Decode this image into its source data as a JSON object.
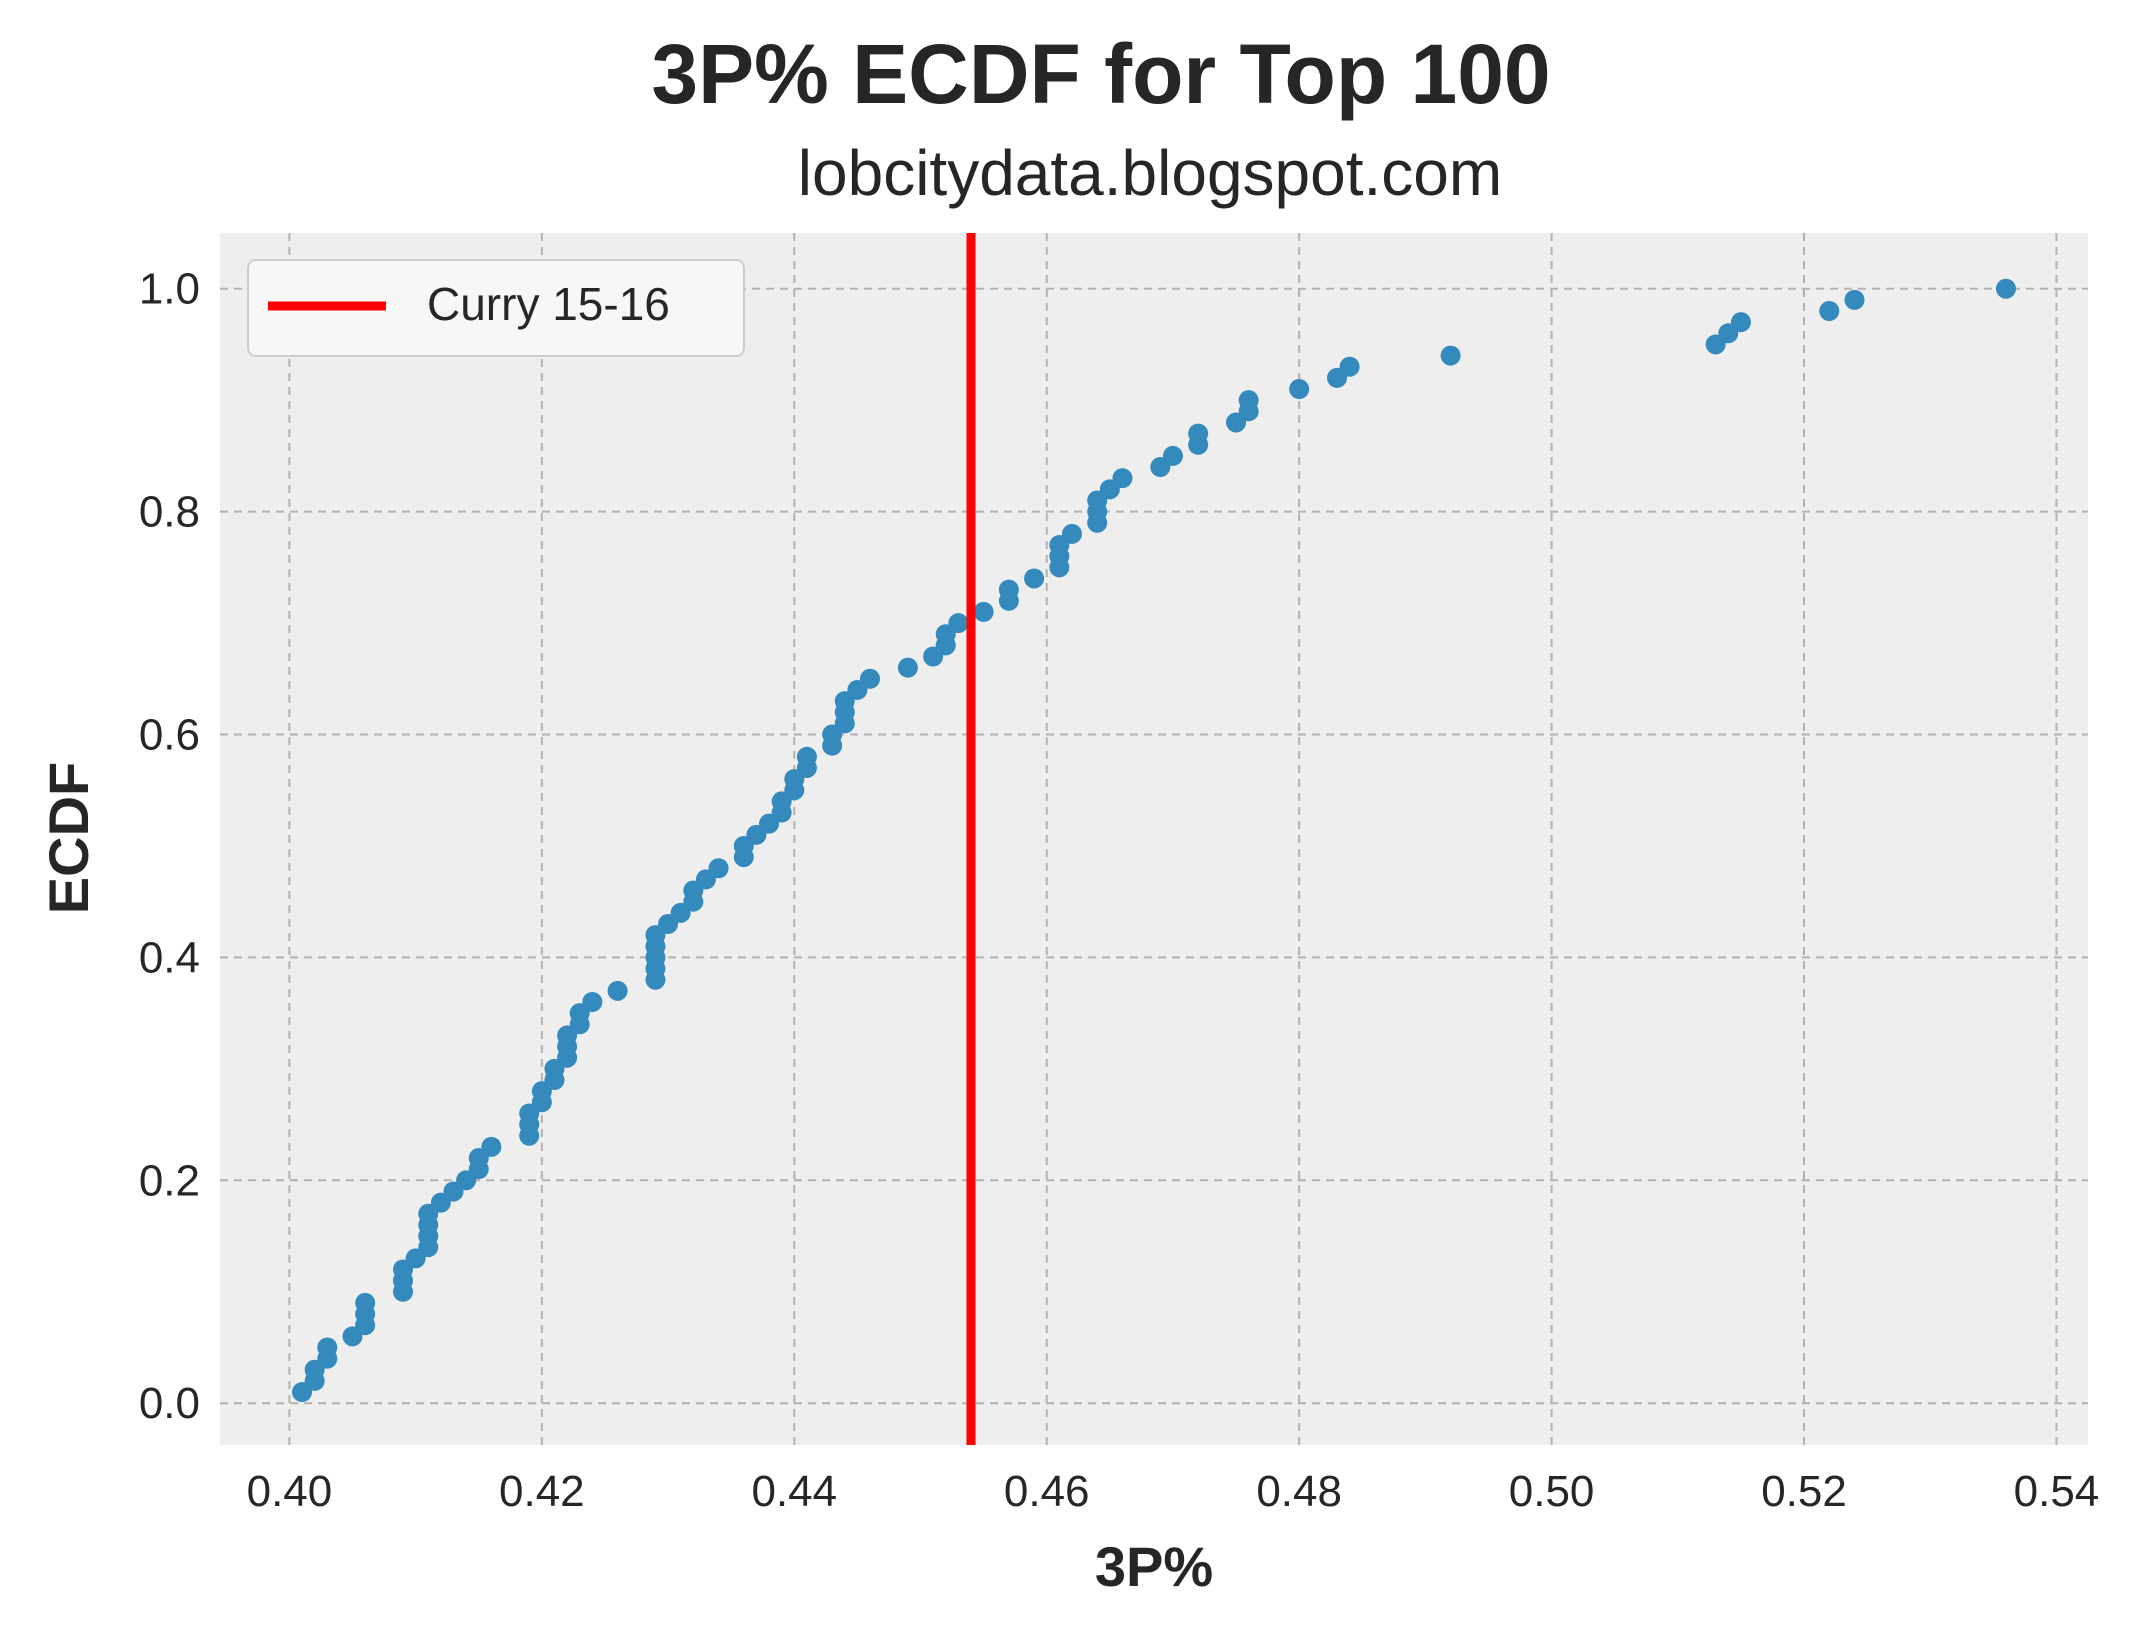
{
  "chart_data": {
    "type": "scatter",
    "title": "3P% ECDF for Top 100",
    "subtitle": "lobcitydata.blogspot.com",
    "xlabel": "3P%",
    "ylabel": "ECDF",
    "xlim": [
      0.3945,
      0.5425
    ],
    "ylim": [
      -0.0375,
      1.05
    ],
    "x_ticks": [
      0.4,
      0.42,
      0.44,
      0.46,
      0.48,
      0.5,
      0.52,
      0.54
    ],
    "x_tick_labels": [
      "0.40",
      "0.42",
      "0.44",
      "0.46",
      "0.48",
      "0.50",
      "0.52",
      "0.54"
    ],
    "y_ticks": [
      0.0,
      0.2,
      0.4,
      0.6,
      0.8,
      1.0
    ],
    "y_tick_labels": [
      "0.0",
      "0.2",
      "0.4",
      "0.6",
      "0.8",
      "1.0"
    ],
    "grid": true,
    "legend_position": "top-left",
    "background_color": "#eeeeee",
    "grid_color": "#b2b2b2",
    "point_color": "#348abd",
    "series": [
      {
        "x": [
          0.401,
          0.402,
          0.402,
          0.403,
          0.403,
          0.405,
          0.406,
          0.406,
          0.406,
          0.409,
          0.409,
          0.409,
          0.41,
          0.411,
          0.411,
          0.411,
          0.411,
          0.412,
          0.413,
          0.414,
          0.415,
          0.415,
          0.416,
          0.419,
          0.419,
          0.419,
          0.42,
          0.42,
          0.421,
          0.421,
          0.422,
          0.422,
          0.422,
          0.423,
          0.423,
          0.424,
          0.426,
          0.429,
          0.429,
          0.429,
          0.429,
          0.429,
          0.43,
          0.431,
          0.432,
          0.432,
          0.433,
          0.434,
          0.436,
          0.436,
          0.437,
          0.438,
          0.439,
          0.439,
          0.44,
          0.44,
          0.441,
          0.441,
          0.443,
          0.443,
          0.444,
          0.444,
          0.444,
          0.445,
          0.446,
          0.449,
          0.451,
          0.452,
          0.452,
          0.453,
          0.455,
          0.457,
          0.457,
          0.459,
          0.461,
          0.461,
          0.461,
          0.462,
          0.464,
          0.464,
          0.464,
          0.465,
          0.466,
          0.469,
          0.47,
          0.472,
          0.472,
          0.475,
          0.476,
          0.476,
          0.48,
          0.483,
          0.484,
          0.492,
          0.513,
          0.514,
          0.515,
          0.522,
          0.524,
          0.536
        ],
        "y": [
          0.01,
          0.02,
          0.03,
          0.04,
          0.05,
          0.06,
          0.07,
          0.08,
          0.09,
          0.1,
          0.11,
          0.12,
          0.13,
          0.14,
          0.15,
          0.16,
          0.17,
          0.18,
          0.19,
          0.2,
          0.21,
          0.22,
          0.23,
          0.24,
          0.25,
          0.26,
          0.27,
          0.28,
          0.29,
          0.3,
          0.31,
          0.32,
          0.33,
          0.34,
          0.35,
          0.36,
          0.37,
          0.38,
          0.39,
          0.4,
          0.41,
          0.42,
          0.43,
          0.44,
          0.45,
          0.46,
          0.47,
          0.48,
          0.49,
          0.5,
          0.51,
          0.52,
          0.53,
          0.54,
          0.55,
          0.56,
          0.57,
          0.58,
          0.59,
          0.6,
          0.61,
          0.62,
          0.63,
          0.64,
          0.65,
          0.66,
          0.67,
          0.68,
          0.69,
          0.7,
          0.71,
          0.72,
          0.73,
          0.74,
          0.75,
          0.76,
          0.77,
          0.78,
          0.79,
          0.8,
          0.81,
          0.82,
          0.83,
          0.84,
          0.85,
          0.86,
          0.87,
          0.88,
          0.89,
          0.9,
          0.91,
          0.92,
          0.93,
          0.94,
          0.95,
          0.96,
          0.97,
          0.98,
          0.99,
          1.0
        ]
      }
    ],
    "vline": {
      "name": "Curry 15-16",
      "x": 0.454,
      "color": "#ff0000"
    }
  }
}
